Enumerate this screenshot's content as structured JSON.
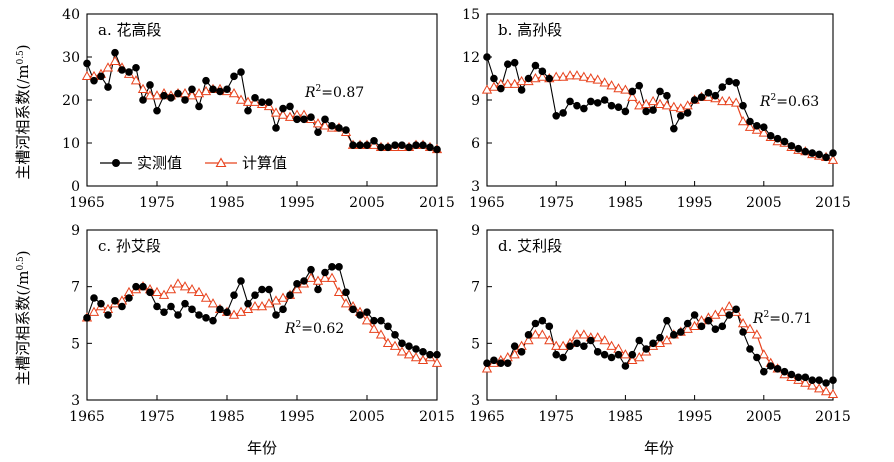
{
  "figure": {
    "ylabel": "主槽河相系数(/m",
    "ylabel_sup": "0.5",
    "ylabel_close": ")",
    "xlabel": "年份",
    "legend": {
      "observed": "实测值",
      "computed": "计算值"
    },
    "colors": {
      "observed": "#000000",
      "computed": "#e8431e"
    }
  },
  "chart_data": [
    {
      "type": "line",
      "title": "a. 花高段",
      "r2_label": "R",
      "r2_value": "=0.87",
      "xlim": [
        1965,
        2015
      ],
      "ylim": [
        0,
        40
      ],
      "xticks": [
        1965,
        1975,
        1985,
        1995,
        2005,
        2015
      ],
      "yticks": [
        0,
        10,
        20,
        30,
        40
      ],
      "x": [
        1965,
        1966,
        1967,
        1968,
        1969,
        1970,
        1971,
        1972,
        1973,
        1974,
        1975,
        1976,
        1977,
        1978,
        1979,
        1980,
        1981,
        1982,
        1983,
        1984,
        1985,
        1986,
        1987,
        1988,
        1989,
        1990,
        1991,
        1992,
        1993,
        1994,
        1995,
        1996,
        1997,
        1998,
        1999,
        2000,
        2001,
        2002,
        2003,
        2004,
        2005,
        2006,
        2007,
        2008,
        2009,
        2010,
        2011,
        2012,
        2013,
        2014,
        2015
      ],
      "series": [
        {
          "name": "实测值",
          "values": [
            28.5,
            24.5,
            25.5,
            23.0,
            31.0,
            27.0,
            26.5,
            27.5,
            20.0,
            23.5,
            17.5,
            21.0,
            20.5,
            21.5,
            20.0,
            22.5,
            18.5,
            24.5,
            22.5,
            22.0,
            22.5,
            25.5,
            26.5,
            17.5,
            20.5,
            19.5,
            19.5,
            13.5,
            18.0,
            18.5,
            15.5,
            15.5,
            16.0,
            12.5,
            15.5,
            14.0,
            13.5,
            13.0,
            9.5,
            9.5,
            9.5,
            10.5,
            9.0,
            9.0,
            9.5,
            9.5,
            9.0,
            9.5,
            9.5,
            9.0,
            8.5
          ]
        },
        {
          "name": "计算值",
          "values": [
            25.5,
            25.5,
            26.0,
            27.5,
            29.0,
            27.5,
            26.0,
            24.5,
            22.5,
            21.0,
            21.0,
            21.5,
            21.0,
            21.5,
            21.5,
            21.0,
            21.5,
            22.0,
            22.5,
            22.5,
            22.0,
            21.5,
            20.0,
            19.5,
            19.5,
            19.0,
            18.5,
            17.0,
            16.5,
            16.0,
            16.5,
            16.5,
            15.5,
            14.5,
            14.0,
            13.5,
            13.5,
            12.5,
            9.5,
            9.5,
            9.5,
            9.5,
            9.0,
            9.0,
            9.0,
            9.0,
            9.0,
            9.5,
            9.5,
            9.0,
            8.5
          ]
        }
      ]
    },
    {
      "type": "line",
      "title": "b. 高孙段",
      "r2_label": "R",
      "r2_value": "=0.63",
      "xlim": [
        1965,
        2015
      ],
      "ylim": [
        3,
        15
      ],
      "xticks": [
        1965,
        1975,
        1985,
        1995,
        2005,
        2015
      ],
      "yticks": [
        3,
        6,
        9,
        12,
        15
      ],
      "x": [
        1965,
        1966,
        1967,
        1968,
        1969,
        1970,
        1971,
        1972,
        1973,
        1974,
        1975,
        1976,
        1977,
        1978,
        1979,
        1980,
        1981,
        1982,
        1983,
        1984,
        1985,
        1986,
        1987,
        1988,
        1989,
        1990,
        1991,
        1992,
        1993,
        1994,
        1995,
        1996,
        1997,
        1998,
        1999,
        2000,
        2001,
        2002,
        2003,
        2004,
        2005,
        2006,
        2007,
        2008,
        2009,
        2010,
        2011,
        2012,
        2013,
        2014,
        2015
      ],
      "series": [
        {
          "name": "实测值",
          "values": [
            12.0,
            10.5,
            9.8,
            11.5,
            11.6,
            9.7,
            10.5,
            11.4,
            11.0,
            10.5,
            7.9,
            8.1,
            8.9,
            8.6,
            8.4,
            8.9,
            8.8,
            9.0,
            8.6,
            8.5,
            8.2,
            9.6,
            10.0,
            8.2,
            8.3,
            9.6,
            9.3,
            7.0,
            7.9,
            8.1,
            9.0,
            9.2,
            9.5,
            9.3,
            9.9,
            10.3,
            10.2,
            8.6,
            7.5,
            7.2,
            7.1,
            6.5,
            6.3,
            6.1,
            5.8,
            5.6,
            5.4,
            5.3,
            5.2,
            5.0,
            5.3
          ]
        },
        {
          "name": "计算值",
          "values": [
            9.7,
            9.9,
            10.1,
            10.1,
            10.1,
            10.3,
            10.3,
            10.5,
            10.6,
            10.5,
            10.6,
            10.6,
            10.7,
            10.7,
            10.6,
            10.5,
            10.4,
            10.2,
            10.0,
            9.8,
            9.7,
            9.2,
            8.6,
            8.7,
            8.9,
            8.7,
            8.6,
            8.5,
            8.4,
            8.6,
            9.0,
            9.2,
            9.2,
            9.1,
            8.9,
            8.9,
            8.8,
            7.5,
            7.1,
            6.9,
            6.7,
            6.4,
            6.1,
            6.0,
            5.7,
            5.5,
            5.4,
            5.2,
            5.1,
            5.0,
            4.8
          ]
        }
      ]
    },
    {
      "type": "line",
      "title": "c. 孙艾段",
      "r2_label": "R",
      "r2_value": "=0.62",
      "xlim": [
        1965,
        2015
      ],
      "ylim": [
        3,
        9
      ],
      "xticks": [
        1965,
        1975,
        1985,
        1995,
        2005,
        2015
      ],
      "yticks": [
        3,
        5,
        7,
        9
      ],
      "x": [
        1965,
        1966,
        1967,
        1968,
        1969,
        1970,
        1971,
        1972,
        1973,
        1974,
        1975,
        1976,
        1977,
        1978,
        1979,
        1980,
        1981,
        1982,
        1983,
        1984,
        1985,
        1986,
        1987,
        1988,
        1989,
        1990,
        1991,
        1992,
        1993,
        1994,
        1995,
        1996,
        1997,
        1998,
        1999,
        2000,
        2001,
        2002,
        2003,
        2004,
        2005,
        2006,
        2007,
        2008,
        2009,
        2010,
        2011,
        2012,
        2013,
        2014,
        2015
      ],
      "series": [
        {
          "name": "实测值",
          "values": [
            5.9,
            6.6,
            6.4,
            6.0,
            6.5,
            6.3,
            6.6,
            7.0,
            7.0,
            6.8,
            6.3,
            6.1,
            6.3,
            6.0,
            6.4,
            6.2,
            6.0,
            5.9,
            5.8,
            6.2,
            6.1,
            6.7,
            7.2,
            6.4,
            6.7,
            6.9,
            6.9,
            6.0,
            6.2,
            6.7,
            7.1,
            7.2,
            7.6,
            6.9,
            7.5,
            7.7,
            7.7,
            6.8,
            6.2,
            6.0,
            6.1,
            5.8,
            5.8,
            5.6,
            5.3,
            5.0,
            4.9,
            4.8,
            4.7,
            4.6,
            4.6
          ]
        },
        {
          "name": "计算值",
          "values": [
            5.9,
            6.1,
            6.3,
            6.2,
            6.4,
            6.5,
            6.8,
            6.9,
            7.0,
            6.9,
            6.8,
            6.7,
            6.9,
            7.1,
            7.0,
            6.9,
            6.8,
            6.6,
            6.4,
            6.2,
            6.1,
            6.0,
            6.1,
            6.2,
            6.3,
            6.3,
            6.4,
            6.5,
            6.6,
            6.7,
            6.9,
            7.1,
            7.3,
            7.2,
            7.3,
            7.3,
            6.8,
            6.4,
            6.3,
            6.1,
            5.8,
            5.5,
            5.3,
            5.0,
            4.9,
            4.7,
            4.6,
            4.5,
            4.4,
            4.5,
            4.3
          ]
        }
      ]
    },
    {
      "type": "line",
      "title": "d. 艾利段",
      "r2_label": "R",
      "r2_value": "=0.71",
      "xlim": [
        1965,
        2015
      ],
      "ylim": [
        3,
        9
      ],
      "xticks": [
        1965,
        1975,
        1985,
        1995,
        2005,
        2015
      ],
      "yticks": [
        3,
        5,
        7,
        9
      ],
      "x": [
        1965,
        1966,
        1967,
        1968,
        1969,
        1970,
        1971,
        1972,
        1973,
        1974,
        1975,
        1976,
        1977,
        1978,
        1979,
        1980,
        1981,
        1982,
        1983,
        1984,
        1985,
        1986,
        1987,
        1988,
        1989,
        1990,
        1991,
        1992,
        1993,
        1994,
        1995,
        1996,
        1997,
        1998,
        1999,
        2000,
        2001,
        2002,
        2003,
        2004,
        2005,
        2006,
        2007,
        2008,
        2009,
        2010,
        2011,
        2012,
        2013,
        2014,
        2015
      ],
      "series": [
        {
          "name": "实测值",
          "values": [
            4.3,
            4.4,
            4.3,
            4.3,
            4.9,
            4.7,
            5.3,
            5.7,
            5.8,
            5.6,
            4.6,
            4.5,
            4.9,
            5.0,
            4.9,
            5.1,
            4.7,
            4.6,
            4.5,
            4.6,
            4.2,
            4.6,
            5.1,
            4.8,
            5.0,
            5.2,
            5.8,
            5.3,
            5.4,
            5.7,
            6.0,
            5.6,
            5.8,
            5.5,
            5.6,
            6.0,
            6.2,
            5.4,
            4.8,
            4.5,
            4.0,
            4.2,
            4.1,
            4.0,
            3.9,
            3.8,
            3.8,
            3.7,
            3.7,
            3.6,
            3.7
          ]
        },
        {
          "name": "计算值",
          "values": [
            4.1,
            4.3,
            4.4,
            4.5,
            4.6,
            4.9,
            5.1,
            5.3,
            5.3,
            5.1,
            4.9,
            4.9,
            5.0,
            5.3,
            5.3,
            5.2,
            5.2,
            5.1,
            4.9,
            4.8,
            4.6,
            4.4,
            4.5,
            4.7,
            4.9,
            5.0,
            5.1,
            5.3,
            5.4,
            5.5,
            5.6,
            5.8,
            5.9,
            6.0,
            6.1,
            6.3,
            6.1,
            5.7,
            5.5,
            5.3,
            4.6,
            4.3,
            4.1,
            3.9,
            3.8,
            3.7,
            3.6,
            3.5,
            3.4,
            3.3,
            3.2
          ]
        }
      ]
    }
  ]
}
